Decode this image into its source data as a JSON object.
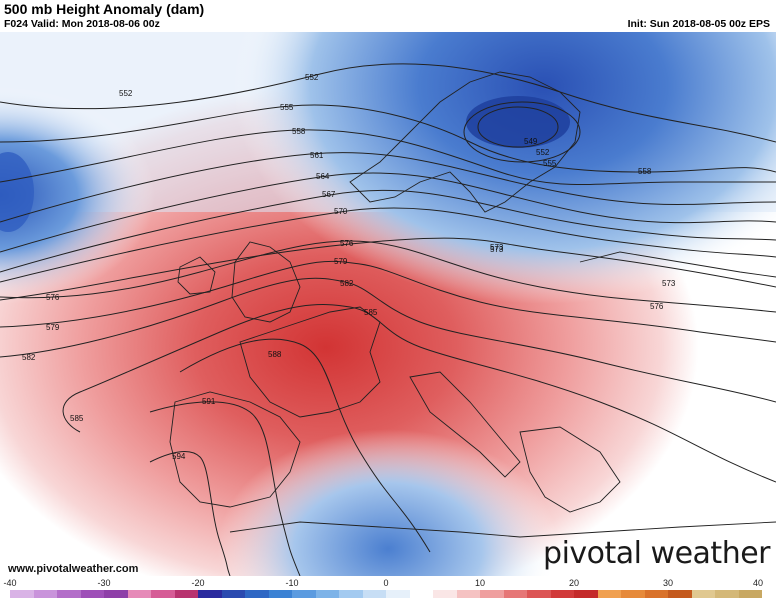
{
  "header": {
    "title": "500 mb Height Anomaly (dam)",
    "valid": "F024 Valid: Mon 2018-08-06 00z",
    "init": "Init: Sun 2018-08-05 00z EPS"
  },
  "watermark": {
    "url": "www.pivotalweather.com",
    "brand": "pivotal weather"
  },
  "contour_labels": [
    "552",
    "552",
    "555",
    "558",
    "561",
    "564",
    "567",
    "570",
    "573",
    "576",
    "579",
    "582",
    "585",
    "588",
    "591",
    "594",
    "549",
    "552",
    "555",
    "558",
    "573",
    "573",
    "576",
    "576",
    "579",
    "582",
    "585"
  ],
  "colorbar": {
    "ticks": [
      "-40",
      "-30",
      "-20",
      "-10",
      "0",
      "10",
      "20",
      "30",
      "40"
    ],
    "colors": [
      "#d9b3e6",
      "#c994db",
      "#b36ec9",
      "#9e4fb8",
      "#8e3fa8",
      "#e68ab8",
      "#d65c96",
      "#b8336f",
      "#2a2a9e",
      "#2a4ab0",
      "#2e67c4",
      "#3b82d4",
      "#5b9be0",
      "#7db3e8",
      "#a3caf0",
      "#c7def5",
      "#e6f0fa",
      "#ffffff",
      "#fae6e6",
      "#f5c2c2",
      "#ef9f9f",
      "#e67777",
      "#dc5555",
      "#d13a3a",
      "#c42a2a",
      "#f0a050",
      "#e68a3a",
      "#d9722a",
      "#c45a1e",
      "#e0c890",
      "#d4b878",
      "#c8a862"
    ]
  }
}
